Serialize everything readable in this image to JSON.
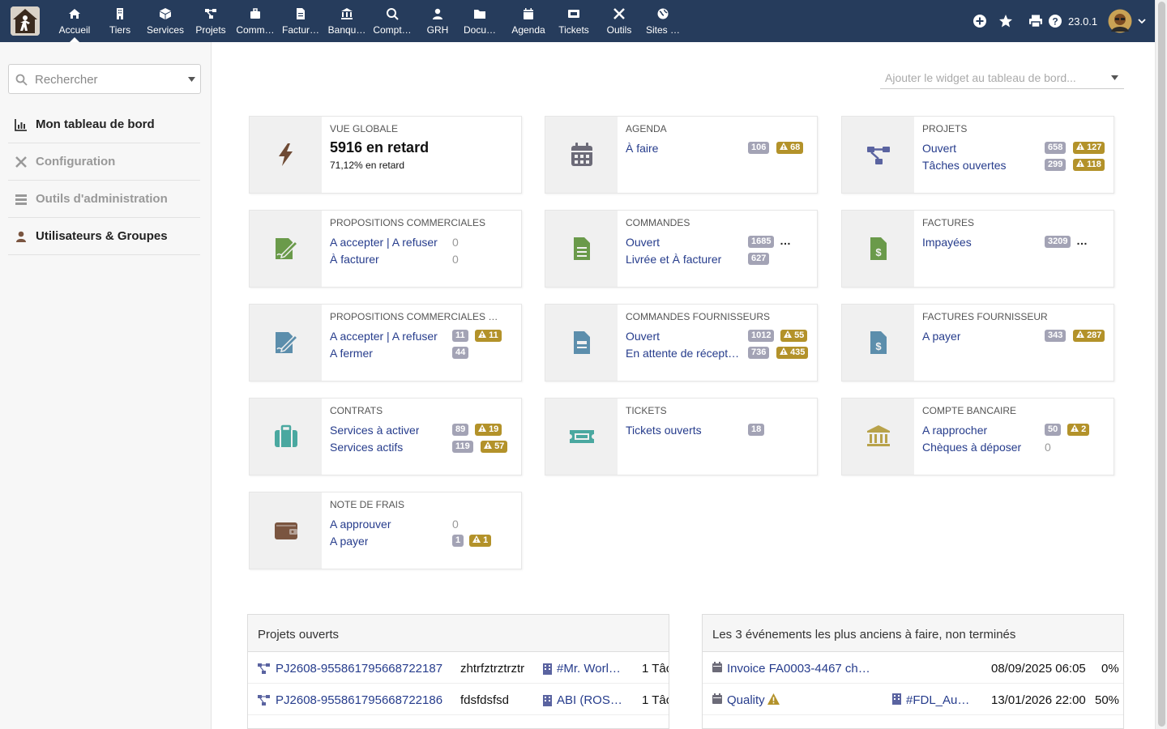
{
  "topbar": {
    "nav": [
      {
        "label": "Accueil",
        "icon": "home-icon",
        "active": true
      },
      {
        "label": "Tiers",
        "icon": "building-icon"
      },
      {
        "label": "Services",
        "icon": "cube-icon"
      },
      {
        "label": "Projets",
        "icon": "project-icon"
      },
      {
        "label": "Comm…",
        "icon": "briefcase-icon"
      },
      {
        "label": "Factur…",
        "icon": "invoice-icon"
      },
      {
        "label": "Banqu…",
        "icon": "bank-icon"
      },
      {
        "label": "Compt…",
        "icon": "search-dollar-icon"
      },
      {
        "label": "GRH",
        "icon": "user-icon"
      },
      {
        "label": "Docu…",
        "icon": "folder-icon"
      },
      {
        "label": "Agenda",
        "icon": "calendar-icon"
      },
      {
        "label": "Tickets",
        "icon": "ticket-icon"
      },
      {
        "label": "Outils",
        "icon": "tools-icon"
      },
      {
        "label": "Sites …",
        "icon": "globe-icon"
      }
    ],
    "version": "23.0.1"
  },
  "sidebar": {
    "search_placeholder": "Rechercher",
    "items": [
      {
        "label": "Mon tableau de bord",
        "icon": "chart-icon"
      },
      {
        "label": "Configuration",
        "icon": "tools-icon"
      },
      {
        "label": "Outils d'administration",
        "icon": "server-icon"
      },
      {
        "label": "Utilisateurs & Groupes",
        "icon": "user-icon"
      }
    ]
  },
  "main": {
    "widget_select_placeholder": "Ajouter le widget au tableau de bord...",
    "overview": {
      "title": "VUE GLOBALE",
      "value": "5916 en retard",
      "sub": "71,12% en retard"
    },
    "cards": [
      {
        "title": "AGENDA",
        "icon": "calendar-icon",
        "rows": [
          {
            "label": "À faire",
            "count": "106",
            "late": "68"
          }
        ]
      },
      {
        "title": "PROJETS",
        "icon": "project-icon",
        "rows": [
          {
            "label": "Ouvert",
            "count": "658",
            "late": "127"
          },
          {
            "label": "Tâches ouvertes",
            "count": "299",
            "late": "118"
          }
        ]
      },
      {
        "title": "PROPOSITIONS COMMERCIALES",
        "icon": "signature-icon",
        "rows": [
          {
            "label": "A accepter | A refuser",
            "count": "0"
          },
          {
            "label": "À facturer",
            "count": "0"
          }
        ]
      },
      {
        "title": "COMMANDES",
        "icon": "order-icon",
        "rows": [
          {
            "label": "Ouvert",
            "count": "1685",
            "more": "…"
          },
          {
            "label": "Livrée et À facturer",
            "count": "627"
          }
        ]
      },
      {
        "title": "FACTURES",
        "icon": "invoice-dollar-icon",
        "rows": [
          {
            "label": "Impayées",
            "count": "3209",
            "more": "…"
          }
        ]
      },
      {
        "title": "PROPOSITIONS COMMERCIALES …",
        "icon": "signature-icon",
        "rows": [
          {
            "label": "A accepter | A refuser",
            "count": "11",
            "late": "11"
          },
          {
            "label": "A fermer",
            "count": "44"
          }
        ]
      },
      {
        "title": "COMMANDES FOURNISSEURS",
        "icon": "supplier-order-icon",
        "rows": [
          {
            "label": "Ouvert",
            "count": "1012",
            "late": "55"
          },
          {
            "label": "En attente de récept…",
            "count": "736",
            "late": "435"
          }
        ]
      },
      {
        "title": "FACTURES FOURNISSEUR",
        "icon": "invoice-dollar-icon",
        "rows": [
          {
            "label": "A payer",
            "count": "343",
            "late": "287"
          }
        ]
      },
      {
        "title": "CONTRATS",
        "icon": "suitcase-icon",
        "rows": [
          {
            "label": "Services à activer",
            "count": "89",
            "late": "19"
          },
          {
            "label": "Services actifs",
            "count": "119",
            "late": "57"
          }
        ]
      },
      {
        "title": "TICKETS",
        "icon": "ticket-icon",
        "rows": [
          {
            "label": "Tickets ouverts",
            "count": "18"
          }
        ]
      },
      {
        "title": "COMPTE BANCAIRE",
        "icon": "bank-icon",
        "rows": [
          {
            "label": "A rapprocher",
            "count": "50",
            "late": "2"
          },
          {
            "label": "Chèques à déposer",
            "count": "0"
          }
        ]
      },
      {
        "title": "NOTE DE FRAIS",
        "icon": "wallet-icon",
        "rows": [
          {
            "label": "A approuver",
            "count": "0"
          },
          {
            "label": "A payer",
            "count": "1",
            "late": "1"
          }
        ]
      }
    ],
    "projects_panel": {
      "title": "Projets ouverts",
      "rows": [
        {
          "ref": "PJ2608-955861795668722187",
          "name": "zhtrfztrztrztr",
          "thirdparty": "#Mr. Worl…",
          "tasks": "1 Tâc"
        },
        {
          "ref": "PJ2608-955861795668722186",
          "name": "fdsfdsfsd",
          "thirdparty": "ABI (ROS…",
          "tasks": "1 Tâc"
        }
      ]
    },
    "events_panel": {
      "title": "Les 3 événements les plus anciens à faire, non terminés",
      "rows": [
        {
          "label": "Invoice FA0003-4467 ch…",
          "thirdparty": "",
          "date": "08/09/2025 06:05",
          "pct": "0%"
        },
        {
          "label": "Quality",
          "thirdparty": "#FDL_Au…",
          "date": "13/01/2026 22:00",
          "pct": "50%"
        }
      ]
    }
  },
  "colors": {
    "topbar": "#263c5c",
    "badge": "#a3a3b5",
    "warning": "#b3922a",
    "link": "#263c8c"
  }
}
